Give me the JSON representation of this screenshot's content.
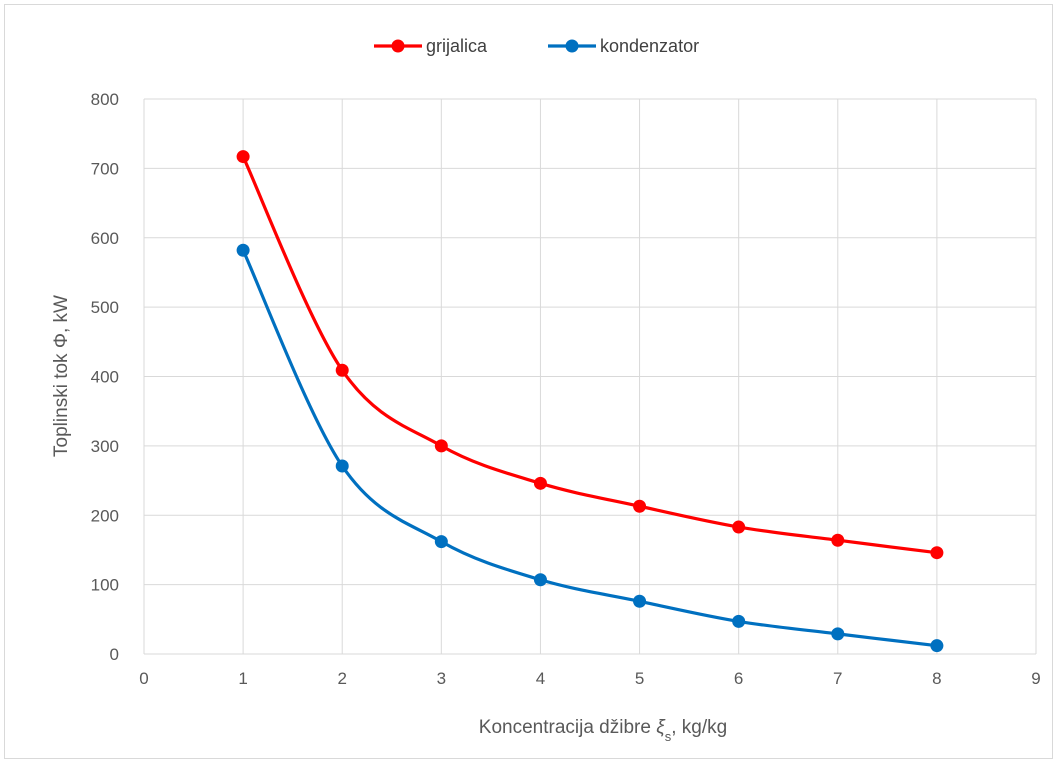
{
  "chart_data": {
    "type": "line",
    "smooth": true,
    "x": [
      1,
      2,
      3,
      4,
      5,
      6,
      7,
      8
    ],
    "series": [
      {
        "name": "grijalica",
        "color": "#ff0000",
        "values": [
          717,
          409,
          300,
          246,
          213,
          183,
          164,
          146
        ]
      },
      {
        "name": "kondenzator",
        "color": "#0070c0",
        "values": [
          582,
          271,
          162,
          107,
          76,
          47,
          29,
          12
        ]
      }
    ],
    "xlabel_prefix": "Koncentracija džibre ",
    "xlabel_symbol": "ξ",
    "xlabel_subscript": "s",
    "xlabel_suffix": ", kg/kg",
    "ylabel": "Toplinski tok Φ, kW",
    "xlim": [
      0,
      9
    ],
    "ylim": [
      0,
      800
    ],
    "xticks": [
      "0",
      "1",
      "2",
      "3",
      "4",
      "5",
      "6",
      "7",
      "8",
      "9"
    ],
    "yticks": [
      "0",
      "100",
      "200",
      "300",
      "400",
      "500",
      "600",
      "700",
      "800"
    ],
    "grid": true,
    "legend_position": "top"
  }
}
